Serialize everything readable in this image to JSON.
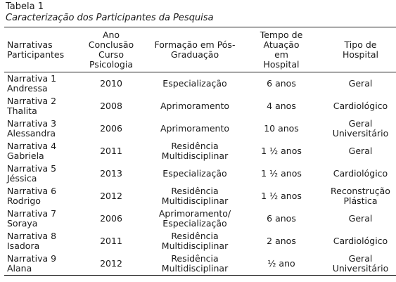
{
  "caption": {
    "label": "Tabela 1",
    "title": "Caracterização dos Participantes da Pesquisa"
  },
  "headers": [
    "Narrativas\nParticipantes",
    "Ano\nConclusão\nCurso\nPsicologia",
    "Formação em Pós-\nGraduação",
    "Tempo de\nAtuação\nem\nHospital",
    "Tipo de\nHospital"
  ],
  "rows": [
    [
      "Narrativa 1\nAndressa",
      "2010",
      "Especialização",
      "6 anos",
      "Geral"
    ],
    [
      "Narrativa 2\nThalita",
      "2008",
      "Aprimoramento",
      "4 anos",
      "Cardiológico"
    ],
    [
      "Narrativa 3\nAlessandra",
      "2006",
      "Aprimoramento",
      "10 anos",
      "Geral\nUniversitário"
    ],
    [
      "Narrativa 4\nGabriela",
      "2011",
      "Residência\nMultidisciplinar",
      "1 ½ anos",
      "Geral"
    ],
    [
      "Narrativa 5\nJéssica",
      "2013",
      "Especialização",
      "1 ½ anos",
      "Cardiológico"
    ],
    [
      "Narrativa 6\nRodrigo",
      "2012",
      "Residência\nMultidisciplinar",
      "1 ½ anos",
      "Reconstrução\nPlástica"
    ],
    [
      "Narrativa 7\nSoraya",
      "2006",
      "Aprimoramento/\nEspecialização",
      "6 anos",
      "Geral"
    ],
    [
      "Narrativa 8\nIsadora",
      "2011",
      "Residência\nMultidisciplinar",
      "2 anos",
      "Cardiológico"
    ],
    [
      "Narrativa 9\nAlana",
      "2012",
      "Residência\nMultidisciplinar",
      "½ ano",
      "Geral\nUniversitário"
    ]
  ]
}
